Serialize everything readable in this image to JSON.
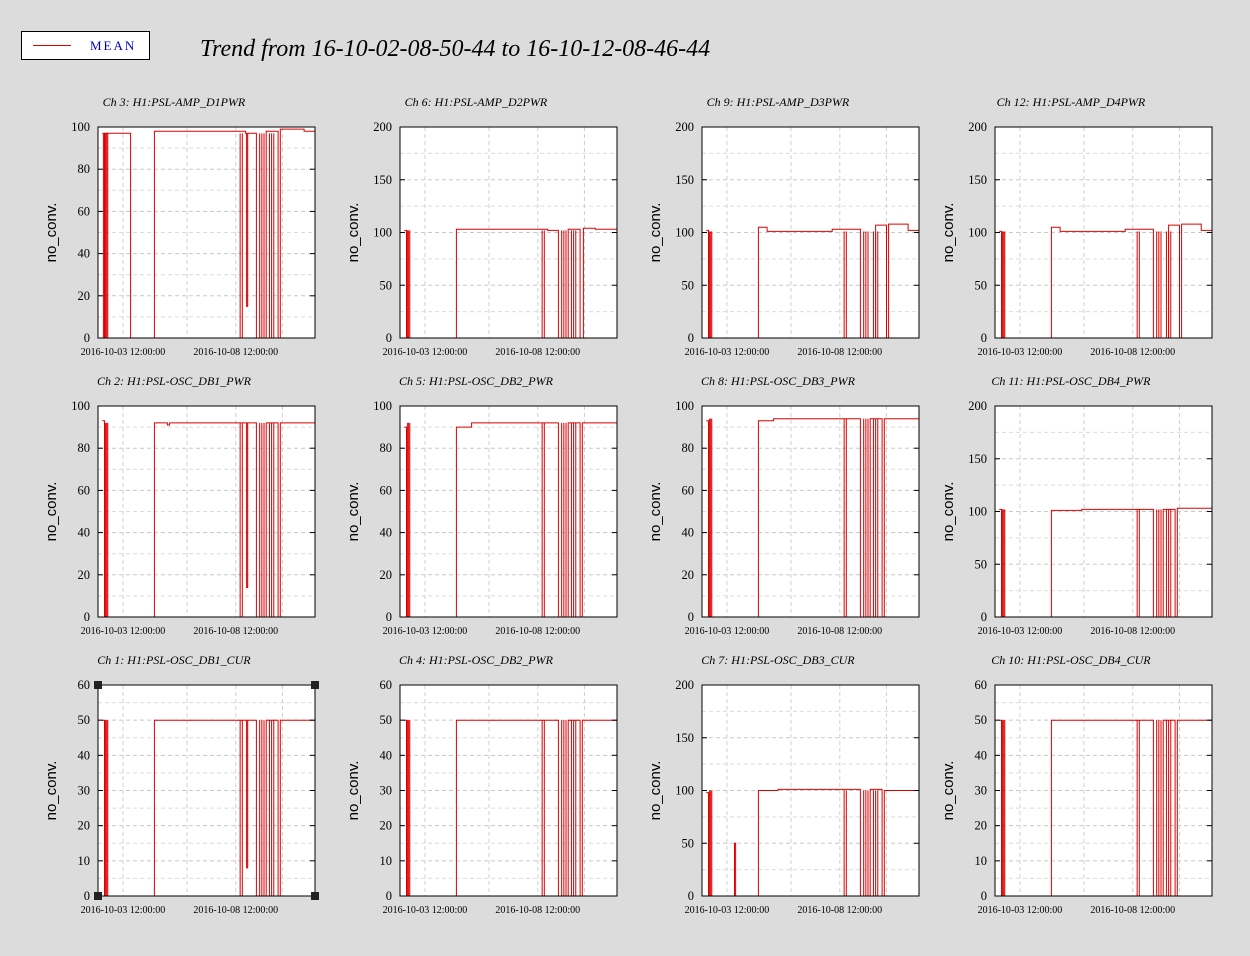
{
  "title": "Trend from 16-10-02-08-50-44 to 16-10-12-08-46-44",
  "legend": {
    "label": "MEAN",
    "color": "#dd0000"
  },
  "chart_data": [
    {
      "type": "line",
      "title": "Ch 3: H1:PSL-AMP_D1PWR",
      "ylabel": "no_conv.",
      "ylim": [
        0,
        100
      ],
      "yticks": [
        0,
        20,
        40,
        60,
        80,
        100
      ],
      "xticks": [
        "2016-10-03 12:00:00",
        "2016-10-08 12:00:00"
      ],
      "level": 97,
      "selected": false,
      "series": [
        {
          "name": "MEAN",
          "values": [
            [
              0.02,
              97
            ],
            [
              0.025,
              0
            ],
            [
              0.03,
              97
            ],
            [
              0.15,
              0
            ],
            [
              0.18,
              0
            ],
            [
              0.255,
              0
            ],
            [
              0.26,
              98
            ],
            [
              0.68,
              97
            ],
            [
              0.685,
              15
            ],
            [
              0.69,
              97
            ],
            [
              0.73,
              0
            ],
            [
              0.775,
              98
            ],
            [
              0.83,
              0
            ],
            [
              0.84,
              99
            ],
            [
              0.95,
              98
            ],
            [
              1.0,
              97
            ]
          ]
        }
      ]
    },
    {
      "type": "line",
      "title": "Ch 6: H1:PSL-AMP_D2PWR",
      "ylabel": "no_conv.",
      "ylim": [
        0,
        200
      ],
      "yticks": [
        0,
        50,
        100,
        150,
        200
      ],
      "xticks": [
        "2016-10-03 12:00:00",
        "2016-10-08 12:00:00"
      ],
      "level": 102,
      "selected": false,
      "series": [
        {
          "name": "MEAN",
          "values": [
            [
              0.02,
              102
            ],
            [
              0.03,
              0
            ],
            [
              0.15,
              0
            ],
            [
              0.255,
              0
            ],
            [
              0.26,
              103
            ],
            [
              0.68,
              102
            ],
            [
              0.73,
              0
            ],
            [
              0.775,
              103
            ],
            [
              0.83,
              0
            ],
            [
              0.845,
              104
            ],
            [
              0.9,
              103
            ],
            [
              1.0,
              102
            ]
          ]
        }
      ]
    },
    {
      "type": "line",
      "title": "Ch 9: H1:PSL-AMP_D3PWR",
      "ylabel": "no_conv.",
      "ylim": [
        0,
        200
      ],
      "yticks": [
        0,
        50,
        100,
        150,
        200
      ],
      "xticks": [
        "2016-10-03 12:00:00",
        "2016-10-08 12:00:00"
      ],
      "level": 101,
      "selected": false,
      "series": [
        {
          "name": "MEAN",
          "values": [
            [
              0.02,
              102
            ],
            [
              0.03,
              0
            ],
            [
              0.15,
              0
            ],
            [
              0.255,
              0
            ],
            [
              0.26,
              105
            ],
            [
              0.3,
              101
            ],
            [
              0.5,
              101
            ],
            [
              0.6,
              103
            ],
            [
              0.7,
              103
            ],
            [
              0.73,
              0
            ],
            [
              0.8,
              107
            ],
            [
              0.85,
              0
            ],
            [
              0.86,
              108
            ],
            [
              0.95,
              102
            ],
            [
              1.0,
              101
            ]
          ]
        }
      ]
    },
    {
      "type": "line",
      "title": "Ch 12: H1:PSL-AMP_D4PWR",
      "ylabel": "no_conv.",
      "ylim": [
        0,
        200
      ],
      "yticks": [
        0,
        50,
        100,
        150,
        200
      ],
      "xticks": [
        "2016-10-03 12:00:00",
        "2016-10-08 12:00:00"
      ],
      "level": 101,
      "selected": false,
      "series": [
        {
          "name": "MEAN",
          "values": [
            [
              0.02,
              101
            ],
            [
              0.03,
              0
            ],
            [
              0.15,
              0
            ],
            [
              0.255,
              0
            ],
            [
              0.26,
              105
            ],
            [
              0.3,
              101
            ],
            [
              0.5,
              101
            ],
            [
              0.6,
              103
            ],
            [
              0.7,
              103
            ],
            [
              0.73,
              0
            ],
            [
              0.8,
              107
            ],
            [
              0.85,
              0
            ],
            [
              0.86,
              108
            ],
            [
              0.95,
              102
            ],
            [
              1.0,
              101
            ]
          ]
        }
      ]
    },
    {
      "type": "line",
      "title": "Ch 2: H1:PSL-OSC_DB1_PWR",
      "ylabel": "no_conv.",
      "ylim": [
        0,
        100
      ],
      "yticks": [
        0,
        20,
        40,
        60,
        80,
        100
      ],
      "xticks": [
        "2016-10-03 12:00:00",
        "2016-10-08 12:00:00"
      ],
      "level": 92,
      "selected": false,
      "series": [
        {
          "name": "MEAN",
          "values": [
            [
              0.02,
              93
            ],
            [
              0.03,
              0
            ],
            [
              0.15,
              0
            ],
            [
              0.255,
              0
            ],
            [
              0.26,
              92
            ],
            [
              0.32,
              91
            ],
            [
              0.33,
              92
            ],
            [
              0.68,
              92
            ],
            [
              0.685,
              14
            ],
            [
              0.69,
              92
            ],
            [
              0.73,
              0
            ],
            [
              0.775,
              92
            ],
            [
              0.83,
              0
            ],
            [
              0.84,
              92
            ],
            [
              1.0,
              92
            ]
          ]
        }
      ]
    },
    {
      "type": "line",
      "title": "Ch 5: H1:PSL-OSC_DB2_PWR",
      "ylabel": "no_conv.",
      "ylim": [
        0,
        100
      ],
      "yticks": [
        0,
        20,
        40,
        60,
        80,
        100
      ],
      "xticks": [
        "2016-10-03 12:00:00",
        "2016-10-08 12:00:00"
      ],
      "level": 92,
      "selected": false,
      "series": [
        {
          "name": "MEAN",
          "values": [
            [
              0.02,
              90
            ],
            [
              0.03,
              0
            ],
            [
              0.15,
              0
            ],
            [
              0.255,
              0
            ],
            [
              0.26,
              90
            ],
            [
              0.33,
              92
            ],
            [
              0.68,
              92
            ],
            [
              0.73,
              0
            ],
            [
              0.775,
              92
            ],
            [
              0.83,
              0
            ],
            [
              0.84,
              92
            ],
            [
              1.0,
              92
            ]
          ]
        }
      ]
    },
    {
      "type": "line",
      "title": "Ch 8: H1:PSL-OSC_DB3_PWR",
      "ylabel": "no_conv.",
      "ylim": [
        0,
        100
      ],
      "yticks": [
        0,
        20,
        40,
        60,
        80,
        100
      ],
      "xticks": [
        "2016-10-03 12:00:00",
        "2016-10-08 12:00:00"
      ],
      "level": 94,
      "selected": false,
      "series": [
        {
          "name": "MEAN",
          "values": [
            [
              0.02,
              93
            ],
            [
              0.03,
              0
            ],
            [
              0.15,
              0
            ],
            [
              0.255,
              0
            ],
            [
              0.26,
              93
            ],
            [
              0.33,
              94
            ],
            [
              0.68,
              94
            ],
            [
              0.73,
              0
            ],
            [
              0.775,
              94
            ],
            [
              0.83,
              0
            ],
            [
              0.84,
              94
            ],
            [
              1.0,
              94
            ]
          ]
        }
      ]
    },
    {
      "type": "line",
      "title": "Ch 11: H1:PSL-OSC_DB4_PWR",
      "ylabel": "no_conv.",
      "ylim": [
        0,
        200
      ],
      "yticks": [
        0,
        50,
        100,
        150,
        200
      ],
      "xticks": [
        "2016-10-03 12:00:00",
        "2016-10-08 12:00:00"
      ],
      "level": 102,
      "selected": false,
      "series": [
        {
          "name": "MEAN",
          "values": [
            [
              0.02,
              102
            ],
            [
              0.03,
              0
            ],
            [
              0.15,
              0
            ],
            [
              0.255,
              0
            ],
            [
              0.26,
              101
            ],
            [
              0.4,
              102
            ],
            [
              0.68,
              102
            ],
            [
              0.73,
              0
            ],
            [
              0.775,
              102
            ],
            [
              0.83,
              0
            ],
            [
              0.84,
              103
            ],
            [
              1.0,
              103
            ]
          ]
        }
      ]
    },
    {
      "type": "line",
      "title": "Ch 1: H1:PSL-OSC_DB1_CUR",
      "ylabel": "no_conv.",
      "ylim": [
        0,
        60
      ],
      "yticks": [
        0,
        10,
        20,
        30,
        40,
        50,
        60
      ],
      "xticks": [
        "2016-10-03 12:00:00",
        "2016-10-08 12:00:00"
      ],
      "level": 50,
      "selected": true,
      "series": [
        {
          "name": "MEAN",
          "values": [
            [
              0.02,
              50
            ],
            [
              0.03,
              0
            ],
            [
              0.15,
              0
            ],
            [
              0.255,
              0
            ],
            [
              0.26,
              50
            ],
            [
              0.33,
              50
            ],
            [
              0.68,
              50
            ],
            [
              0.685,
              8
            ],
            [
              0.69,
              50
            ],
            [
              0.73,
              0
            ],
            [
              0.775,
              50
            ],
            [
              0.83,
              0
            ],
            [
              0.84,
              50
            ],
            [
              1.0,
              50
            ]
          ]
        }
      ]
    },
    {
      "type": "line",
      "title": "Ch 4: H1:PSL-OSC_DB2_PWR",
      "ylabel": "no_conv.",
      "ylim": [
        0,
        60
      ],
      "yticks": [
        0,
        10,
        20,
        30,
        40,
        50,
        60
      ],
      "xticks": [
        "2016-10-03 12:00:00",
        "2016-10-08 12:00:00"
      ],
      "level": 50,
      "selected": false,
      "series": [
        {
          "name": "MEAN",
          "values": [
            [
              0.02,
              50
            ],
            [
              0.03,
              0
            ],
            [
              0.15,
              0
            ],
            [
              0.255,
              0
            ],
            [
              0.26,
              50
            ],
            [
              0.33,
              50
            ],
            [
              0.68,
              50
            ],
            [
              0.73,
              0
            ],
            [
              0.775,
              50
            ],
            [
              0.83,
              0
            ],
            [
              0.84,
              50
            ],
            [
              1.0,
              50
            ]
          ]
        }
      ]
    },
    {
      "type": "line",
      "title": "Ch 7: H1:PSL-OSC_DB3_CUR",
      "ylabel": "no_conv.",
      "ylim": [
        0,
        200
      ],
      "yticks": [
        0,
        50,
        100,
        150,
        200
      ],
      "xticks": [
        "2016-10-03 12:00:00",
        "2016-10-08 12:00:00"
      ],
      "level": 100,
      "selected": false,
      "series": [
        {
          "name": "MEAN",
          "values": [
            [
              0.02,
              98
            ],
            [
              0.03,
              0
            ],
            [
              0.15,
              50
            ],
            [
              0.155,
              0
            ],
            [
              0.255,
              0
            ],
            [
              0.26,
              100
            ],
            [
              0.35,
              101
            ],
            [
              0.68,
              101
            ],
            [
              0.73,
              0
            ],
            [
              0.775,
              101
            ],
            [
              0.83,
              0
            ],
            [
              0.84,
              100
            ],
            [
              1.0,
              100
            ]
          ]
        }
      ]
    },
    {
      "type": "line",
      "title": "Ch 10: H1:PSL-OSC_DB4_CUR",
      "ylabel": "no_conv.",
      "ylim": [
        0,
        60
      ],
      "yticks": [
        0,
        10,
        20,
        30,
        40,
        50,
        60
      ],
      "xticks": [
        "2016-10-03 12:00:00",
        "2016-10-08 12:00:00"
      ],
      "level": 50,
      "selected": false,
      "series": [
        {
          "name": "MEAN",
          "values": [
            [
              0.02,
              50
            ],
            [
              0.03,
              0
            ],
            [
              0.15,
              0
            ],
            [
              0.255,
              0
            ],
            [
              0.26,
              50
            ],
            [
              0.33,
              50
            ],
            [
              0.68,
              50
            ],
            [
              0.73,
              0
            ],
            [
              0.775,
              50
            ],
            [
              0.83,
              0
            ],
            [
              0.84,
              50
            ],
            [
              1.0,
              50
            ]
          ]
        }
      ]
    }
  ]
}
